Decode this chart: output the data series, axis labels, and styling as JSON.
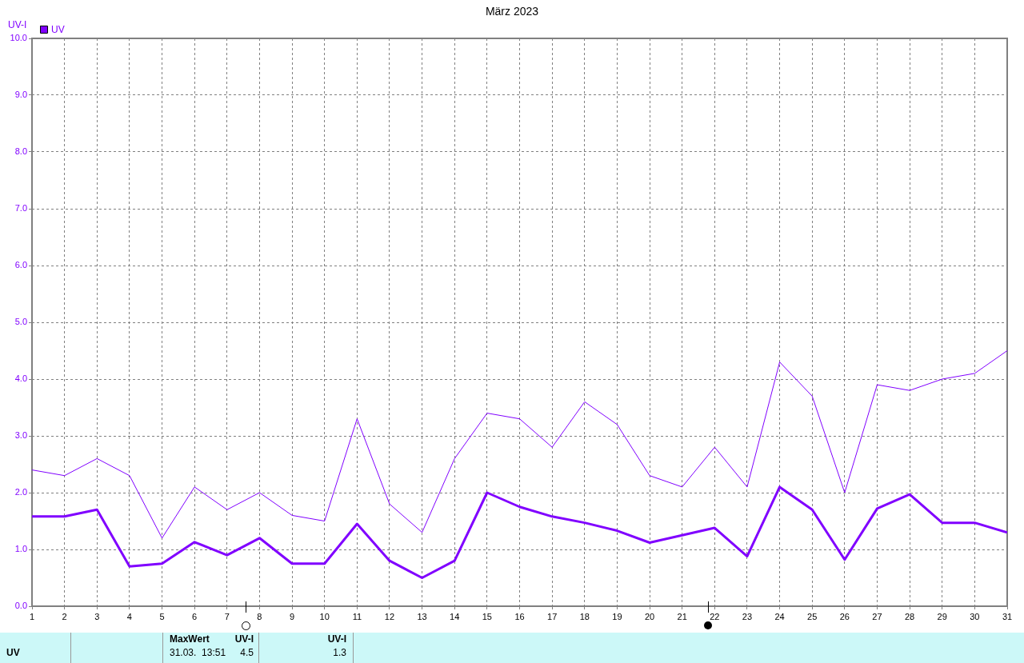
{
  "chart_data": {
    "type": "line",
    "title": "März 2023",
    "ylabel": "UV-I",
    "x": [
      1,
      2,
      3,
      4,
      5,
      6,
      7,
      8,
      9,
      10,
      11,
      12,
      13,
      14,
      15,
      16,
      17,
      18,
      19,
      20,
      21,
      22,
      23,
      24,
      25,
      26,
      27,
      28,
      29,
      30,
      31
    ],
    "series": [
      {
        "color": "#8000ff",
        "values": [
          2.4,
          2.3,
          2.6,
          2.3,
          1.2,
          2.1,
          1.7,
          2.0,
          1.6,
          1.5,
          3.3,
          1.8,
          1.3,
          2.6,
          3.4,
          3.3,
          2.8,
          3.6,
          3.2,
          2.3,
          2.1,
          2.8,
          2.1,
          4.3,
          3.7,
          2.0,
          3.9,
          3.8,
          4.0,
          4.1,
          4.5
        ]
      },
      {
        "name": "UV",
        "color": "#8000ff",
        "values": [
          1.58,
          1.58,
          1.7,
          0.7,
          0.75,
          1.13,
          0.9,
          1.2,
          0.75,
          0.75,
          1.45,
          0.8,
          0.5,
          0.8,
          2.0,
          1.75,
          1.58,
          1.47,
          1.33,
          1.12,
          1.25,
          1.38,
          0.88,
          2.1,
          1.7,
          0.82,
          1.72,
          1.97,
          1.47,
          1.47,
          1.3
        ]
      }
    ],
    "xlim": [
      1,
      31
    ],
    "xticks": [
      1,
      2,
      3,
      4,
      5,
      6,
      7,
      8,
      9,
      10,
      11,
      12,
      13,
      14,
      15,
      16,
      17,
      18,
      19,
      20,
      21,
      22,
      23,
      24,
      25,
      26,
      27,
      28,
      29,
      30,
      31
    ],
    "ylim": [
      0,
      10
    ],
    "yticks": [
      {
        "value": 0,
        "label": "0.0"
      },
      {
        "value": 1,
        "label": "1.0"
      },
      {
        "value": 2,
        "label": "2.0"
      },
      {
        "value": 3,
        "label": "3.0"
      },
      {
        "value": 4,
        "label": "4.0"
      },
      {
        "value": 5,
        "label": "5.0"
      },
      {
        "value": 6,
        "label": "6.0"
      },
      {
        "value": 7,
        "label": "7.0"
      },
      {
        "value": 8,
        "label": "8.0"
      },
      {
        "value": 9,
        "label": "9.0"
      },
      {
        "value": 10,
        "label": "10.0"
      }
    ],
    "grid": true,
    "legend": "top left",
    "marker": "none",
    "line_style": "solid",
    "annotations": [
      "UV",
      "MaxWert",
      "UV-I",
      "31.03.  13:51",
      "4.5",
      "UV-I",
      "1.3"
    ]
  }
}
